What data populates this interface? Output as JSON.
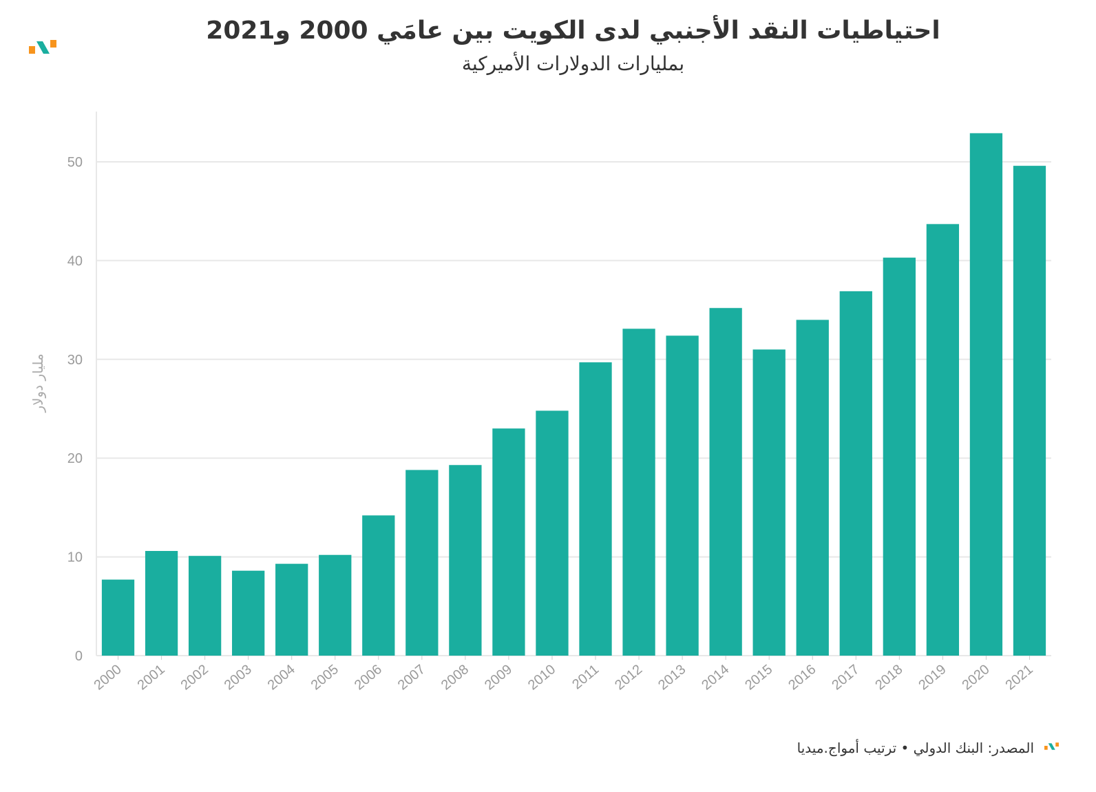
{
  "title": "احتياطيات النقد الأجنبي لدى الكويت بين عامَي 2000 و2021",
  "subtitle": "بمليارات الدولارات الأميركية",
  "footer": "المصدر: البنك الدولي • ترتيب أمواج.ميديا",
  "colors": {
    "bar": "#1aae9f",
    "logo_orange": "#f7941d",
    "logo_teal": "#1aae9f",
    "grid": "#e8e8e8"
  },
  "chart_data": {
    "type": "bar",
    "title": "احتياطيات النقد الأجنبي لدى الكويت بين عامَي 2000 و2021",
    "subtitle": "بمليارات الدولارات الأميركية",
    "xlabel": "",
    "ylabel": "مليار دولار",
    "ylim": [
      0,
      55
    ],
    "yticks": [
      0,
      10,
      20,
      30,
      40,
      50
    ],
    "grid": true,
    "categories": [
      "2000",
      "2001",
      "2002",
      "2003",
      "2004",
      "2005",
      "2006",
      "2007",
      "2008",
      "2009",
      "2010",
      "2011",
      "2012",
      "2013",
      "2014",
      "2015",
      "2016",
      "2017",
      "2018",
      "2019",
      "2020",
      "2021"
    ],
    "values": [
      7.7,
      10.6,
      10.1,
      8.6,
      9.3,
      10.2,
      14.2,
      18.8,
      19.3,
      23.0,
      24.8,
      29.7,
      33.1,
      32.4,
      35.2,
      31.0,
      34.0,
      36.9,
      40.3,
      43.7,
      52.9,
      49.6
    ]
  }
}
